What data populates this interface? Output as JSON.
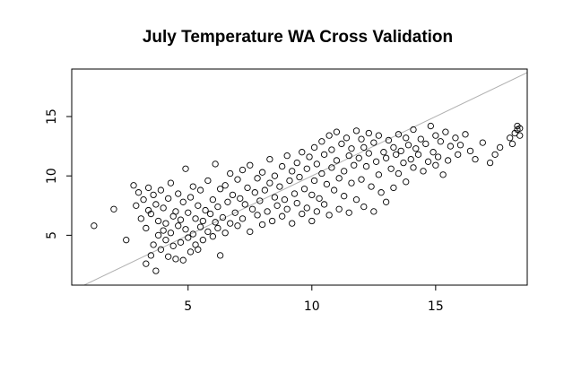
{
  "chart_data": {
    "type": "scatter",
    "title": "July Temperature WA Cross Validation",
    "xlabel": "",
    "ylabel": "",
    "xlim": [
      0.3,
      18.7
    ],
    "ylim": [
      0.8,
      19.0
    ],
    "xticks": [
      5,
      10,
      15
    ],
    "yticks": [
      5,
      10,
      15
    ],
    "grid": false,
    "reference_line": {
      "type": "identity",
      "color": "#b0b0b0"
    },
    "marker": "open-circle",
    "series": [
      {
        "points": [
          [
            1.2,
            5.8
          ],
          [
            2.0,
            7.2
          ],
          [
            2.5,
            4.6
          ],
          [
            2.8,
            9.2
          ],
          [
            2.9,
            7.5
          ],
          [
            3.0,
            8.6
          ],
          [
            3.1,
            6.4
          ],
          [
            3.2,
            8.0
          ],
          [
            3.3,
            5.6
          ],
          [
            3.3,
            2.6
          ],
          [
            3.4,
            7.1
          ],
          [
            3.4,
            9.0
          ],
          [
            3.5,
            3.3
          ],
          [
            3.5,
            6.8
          ],
          [
            3.6,
            4.2
          ],
          [
            3.6,
            8.4
          ],
          [
            3.7,
            2.0
          ],
          [
            3.7,
            7.6
          ],
          [
            3.8,
            5.0
          ],
          [
            3.8,
            6.2
          ],
          [
            3.9,
            3.8
          ],
          [
            3.9,
            8.8
          ],
          [
            4.0,
            5.4
          ],
          [
            4.0,
            7.3
          ],
          [
            4.1,
            4.6
          ],
          [
            4.1,
            6.0
          ],
          [
            4.2,
            3.2
          ],
          [
            4.2,
            8.1
          ],
          [
            4.3,
            5.2
          ],
          [
            4.3,
            9.4
          ],
          [
            4.4,
            4.1
          ],
          [
            4.4,
            6.6
          ],
          [
            4.5,
            7.0
          ],
          [
            4.5,
            3.0
          ],
          [
            4.6,
            5.8
          ],
          [
            4.6,
            8.5
          ],
          [
            4.7,
            4.4
          ],
          [
            4.7,
            6.3
          ],
          [
            4.8,
            2.9
          ],
          [
            4.8,
            7.8
          ],
          [
            4.9,
            5.5
          ],
          [
            4.9,
            10.6
          ],
          [
            5.0,
            4.8
          ],
          [
            5.0,
            6.9
          ],
          [
            5.1,
            3.6
          ],
          [
            5.1,
            8.2
          ],
          [
            5.2,
            5.1
          ],
          [
            5.2,
            9.1
          ],
          [
            5.3,
            6.4
          ],
          [
            5.3,
            4.2
          ],
          [
            5.4,
            7.5
          ],
          [
            5.4,
            3.8
          ],
          [
            5.5,
            5.7
          ],
          [
            5.5,
            8.8
          ],
          [
            5.6,
            6.2
          ],
          [
            5.6,
            4.6
          ],
          [
            5.7,
            7.1
          ],
          [
            5.8,
            5.3
          ],
          [
            5.8,
            9.6
          ],
          [
            5.9,
            6.8
          ],
          [
            6.0,
            4.9
          ],
          [
            6.0,
            8.0
          ],
          [
            6.1,
            6.1
          ],
          [
            6.1,
            11.0
          ],
          [
            6.2,
            5.6
          ],
          [
            6.2,
            7.4
          ],
          [
            6.3,
            3.3
          ],
          [
            6.3,
            8.9
          ],
          [
            6.4,
            6.5
          ],
          [
            6.5,
            9.2
          ],
          [
            6.5,
            5.2
          ],
          [
            6.6,
            7.8
          ],
          [
            6.7,
            6.0
          ],
          [
            6.7,
            10.2
          ],
          [
            6.8,
            8.4
          ],
          [
            6.9,
            6.9
          ],
          [
            7.0,
            9.7
          ],
          [
            7.0,
            5.8
          ],
          [
            7.1,
            8.1
          ],
          [
            7.2,
            10.5
          ],
          [
            7.2,
            6.4
          ],
          [
            7.3,
            7.6
          ],
          [
            7.4,
            9.0
          ],
          [
            7.5,
            5.3
          ],
          [
            7.5,
            10.9
          ],
          [
            7.6,
            7.2
          ],
          [
            7.7,
            8.6
          ],
          [
            7.8,
            6.7
          ],
          [
            7.8,
            9.8
          ],
          [
            7.9,
            7.9
          ],
          [
            8.0,
            5.9
          ],
          [
            8.0,
            10.3
          ],
          [
            8.1,
            8.8
          ],
          [
            8.2,
            7.0
          ],
          [
            8.3,
            9.4
          ],
          [
            8.3,
            11.4
          ],
          [
            8.4,
            6.2
          ],
          [
            8.5,
            8.2
          ],
          [
            8.5,
            10.0
          ],
          [
            8.6,
            7.5
          ],
          [
            8.7,
            9.1
          ],
          [
            8.8,
            6.6
          ],
          [
            8.8,
            10.8
          ],
          [
            8.9,
            8.0
          ],
          [
            9.0,
            11.7
          ],
          [
            9.0,
            7.2
          ],
          [
            9.1,
            9.6
          ],
          [
            9.2,
            6.0
          ],
          [
            9.2,
            10.4
          ],
          [
            9.3,
            8.5
          ],
          [
            9.4,
            11.1
          ],
          [
            9.4,
            7.7
          ],
          [
            9.5,
            9.9
          ],
          [
            9.6,
            6.8
          ],
          [
            9.6,
            12.0
          ],
          [
            9.7,
            8.9
          ],
          [
            9.8,
            10.6
          ],
          [
            9.8,
            7.3
          ],
          [
            9.9,
            11.6
          ],
          [
            10.0,
            8.4
          ],
          [
            10.0,
            6.2
          ],
          [
            10.1,
            12.4
          ],
          [
            10.1,
            9.6
          ],
          [
            10.2,
            7.0
          ],
          [
            10.2,
            11.0
          ],
          [
            10.3,
            8.1
          ],
          [
            10.4,
            12.9
          ],
          [
            10.4,
            10.2
          ],
          [
            10.5,
            7.6
          ],
          [
            10.5,
            11.8
          ],
          [
            10.6,
            9.3
          ],
          [
            10.7,
            13.4
          ],
          [
            10.7,
            6.7
          ],
          [
            10.8,
            10.7
          ],
          [
            10.8,
            12.2
          ],
          [
            10.9,
            8.8
          ],
          [
            11.0,
            13.7
          ],
          [
            11.0,
            11.3
          ],
          [
            11.1,
            7.2
          ],
          [
            11.1,
            9.8
          ],
          [
            11.2,
            12.7
          ],
          [
            11.3,
            10.4
          ],
          [
            11.3,
            8.3
          ],
          [
            11.4,
            13.2
          ],
          [
            11.5,
            11.7
          ],
          [
            11.5,
            6.9
          ],
          [
            11.6,
            9.4
          ],
          [
            11.6,
            12.3
          ],
          [
            11.7,
            10.9
          ],
          [
            11.8,
            13.8
          ],
          [
            11.8,
            8.0
          ],
          [
            11.9,
            11.5
          ],
          [
            12.0,
            13.1
          ],
          [
            12.0,
            9.7
          ],
          [
            12.1,
            12.4
          ],
          [
            12.1,
            7.4
          ],
          [
            12.2,
            10.8
          ],
          [
            12.3,
            13.6
          ],
          [
            12.3,
            11.9
          ],
          [
            12.4,
            9.1
          ],
          [
            12.5,
            12.8
          ],
          [
            12.5,
            7.0
          ],
          [
            12.6,
            11.2
          ],
          [
            12.7,
            13.4
          ],
          [
            12.7,
            10.1
          ],
          [
            12.8,
            8.6
          ],
          [
            12.9,
            12.0
          ],
          [
            13.0,
            11.5
          ],
          [
            13.0,
            7.8
          ],
          [
            13.1,
            13.0
          ],
          [
            13.2,
            10.6
          ],
          [
            13.3,
            12.4
          ],
          [
            13.3,
            9.0
          ],
          [
            13.4,
            11.8
          ],
          [
            13.5,
            13.5
          ],
          [
            13.5,
            10.2
          ],
          [
            13.6,
            12.1
          ],
          [
            13.7,
            11.1
          ],
          [
            13.8,
            13.2
          ],
          [
            13.8,
            9.5
          ],
          [
            13.9,
            12.6
          ],
          [
            14.0,
            11.4
          ],
          [
            14.1,
            13.9
          ],
          [
            14.1,
            10.7
          ],
          [
            14.2,
            12.3
          ],
          [
            14.3,
            11.8
          ],
          [
            14.4,
            13.1
          ],
          [
            14.5,
            10.4
          ],
          [
            14.6,
            12.7
          ],
          [
            14.7,
            11.2
          ],
          [
            14.8,
            14.2
          ],
          [
            14.9,
            12.0
          ],
          [
            15.0,
            13.4
          ],
          [
            15.0,
            10.9
          ],
          [
            15.1,
            11.6
          ],
          [
            15.2,
            12.9
          ],
          [
            15.3,
            10.1
          ],
          [
            15.4,
            13.7
          ],
          [
            15.5,
            11.3
          ],
          [
            15.6,
            12.5
          ],
          [
            15.8,
            13.2
          ],
          [
            15.9,
            11.8
          ],
          [
            16.0,
            12.6
          ],
          [
            16.2,
            13.5
          ],
          [
            16.4,
            12.1
          ],
          [
            16.6,
            11.4
          ],
          [
            16.9,
            12.8
          ],
          [
            17.2,
            11.1
          ],
          [
            17.4,
            11.8
          ],
          [
            17.6,
            12.4
          ],
          [
            18.0,
            13.2
          ],
          [
            18.1,
            12.7
          ],
          [
            18.2,
            13.6
          ],
          [
            18.3,
            13.9
          ],
          [
            18.3,
            14.2
          ],
          [
            18.4,
            13.4
          ],
          [
            18.4,
            14.0
          ]
        ]
      }
    ]
  }
}
